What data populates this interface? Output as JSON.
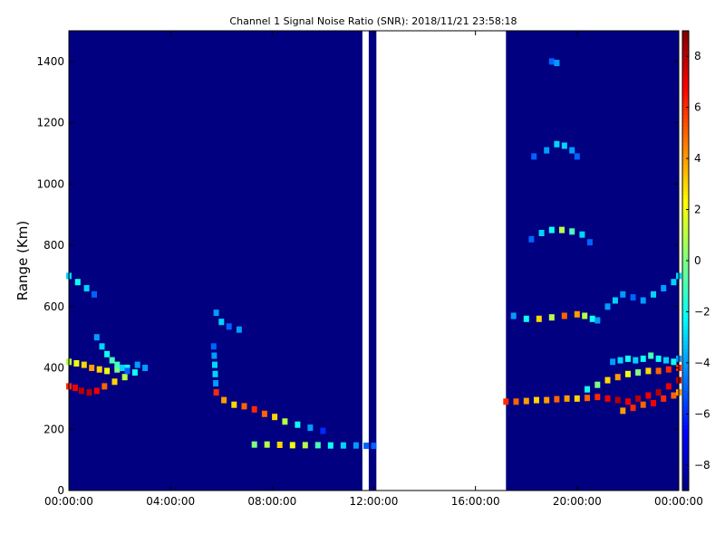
{
  "chart_data": {
    "type": "heatmap",
    "title": "Channel 1 Signal Noise Ratio (SNR): 2018/11/21 23:58:18",
    "xlabel": "",
    "ylabel": "Range (Km)",
    "x_unit": "hours",
    "xlim": [
      0,
      24
    ],
    "ylim": [
      0,
      1500
    ],
    "x_ticks": [
      {
        "value": 0,
        "label": "00:00:00"
      },
      {
        "value": 4,
        "label": "04:00:00"
      },
      {
        "value": 8,
        "label": "08:00:00"
      },
      {
        "value": 12,
        "label": "12:00:00"
      },
      {
        "value": 16,
        "label": "16:00:00"
      },
      {
        "value": 20,
        "label": "20:00:00"
      },
      {
        "value": 24,
        "label": "00:00:00"
      }
    ],
    "y_ticks": [
      {
        "value": 0,
        "label": "0"
      },
      {
        "value": 200,
        "label": "200"
      },
      {
        "value": 400,
        "label": "400"
      },
      {
        "value": 600,
        "label": "600"
      },
      {
        "value": 800,
        "label": "800"
      },
      {
        "value": 1000,
        "label": "1000"
      },
      {
        "value": 1200,
        "label": "1200"
      },
      {
        "value": 1400,
        "label": "1400"
      }
    ],
    "colorbar": {
      "colormap": "jet",
      "range": [
        -9,
        9
      ],
      "ticks": [
        {
          "value": 8,
          "label": "8"
        },
        {
          "value": 6,
          "label": "6"
        },
        {
          "value": 4,
          "label": "4"
        },
        {
          "value": 2,
          "label": "2"
        },
        {
          "value": 0,
          "label": "0"
        },
        {
          "value": -2,
          "label": "−2"
        },
        {
          "value": -4,
          "label": "−4"
        },
        {
          "value": -6,
          "label": "−6"
        },
        {
          "value": -8,
          "label": "−8"
        }
      ]
    },
    "background_value": -9,
    "data_coverage": [
      {
        "x_start": 0.0,
        "x_end": 11.55
      },
      {
        "x_start": 11.8,
        "x_end": 12.1
      },
      {
        "x_start": 17.2,
        "x_end": 24.0
      }
    ],
    "features": [
      {
        "x": [
          0.0,
          0.35,
          0.7,
          1.0
        ],
        "y": [
          700,
          680,
          660,
          640
        ],
        "snr": [
          -3,
          -2,
          -3,
          -5
        ]
      },
      {
        "x": [
          0.0,
          0.25,
          0.5,
          0.8,
          1.1,
          1.4,
          1.8,
          2.2,
          2.6,
          3.0
        ],
        "y": [
          340,
          335,
          325,
          320,
          325,
          340,
          355,
          370,
          385,
          400
        ],
        "snr": [
          6,
          7,
          8,
          8,
          7,
          5,
          3,
          1,
          -2,
          -4
        ]
      },
      {
        "x": [
          0.0,
          0.3,
          0.6,
          0.9,
          1.2,
          1.5,
          1.9,
          2.3,
          2.7
        ],
        "y": [
          420,
          415,
          410,
          400,
          395,
          390,
          395,
          400,
          410
        ],
        "snr": [
          1,
          2,
          3,
          4,
          3,
          2,
          0,
          -2,
          -4
        ]
      },
      {
        "x": [
          1.1,
          1.3,
          1.5,
          1.7,
          1.9,
          2.1,
          2.3
        ],
        "y": [
          500,
          470,
          445,
          425,
          410,
          400,
          390
        ],
        "snr": [
          -4,
          -3,
          -2,
          -1,
          -1,
          -3,
          -5
        ]
      },
      {
        "x": [
          5.7,
          5.72,
          5.74,
          5.76,
          5.78
        ],
        "y": [
          470,
          440,
          410,
          380,
          350
        ],
        "snr": [
          -5,
          -4,
          -3,
          -3,
          -4
        ]
      },
      {
        "x": [
          5.8,
          6.0,
          6.3,
          6.7
        ],
        "y": [
          580,
          550,
          535,
          525
        ],
        "snr": [
          -4,
          -3,
          -5,
          -4
        ]
      },
      {
        "x": [
          5.8,
          6.1,
          6.5,
          6.9,
          7.3,
          7.7,
          8.1,
          8.5,
          9.0,
          9.5,
          10.0
        ],
        "y": [
          320,
          295,
          280,
          275,
          265,
          250,
          240,
          225,
          215,
          205,
          195
        ],
        "snr": [
          6,
          4,
          3,
          5,
          6,
          5,
          3,
          1,
          -2,
          -4,
          -6
        ]
      },
      {
        "x": [
          7.3,
          7.8,
          8.3,
          8.8,
          9.3,
          9.8,
          10.3,
          10.8,
          11.3,
          11.7,
          12.0
        ],
        "y": [
          150,
          150,
          149,
          148,
          148,
          148,
          147,
          147,
          147,
          146,
          146
        ],
        "snr": [
          0,
          1,
          3,
          2,
          1,
          -1,
          -2,
          -3,
          -4,
          -5,
          -5
        ]
      },
      {
        "x": [
          17.2,
          17.6,
          18.0,
          18.4,
          18.8,
          19.2,
          19.6,
          20.0,
          20.4,
          20.8,
          21.2,
          21.6,
          22.0,
          22.4,
          22.8,
          23.2,
          23.6,
          24.0
        ],
        "y": [
          290,
          290,
          292,
          295,
          295,
          298,
          300,
          300,
          302,
          305,
          300,
          295,
          290,
          300,
          310,
          320,
          340,
          360
        ],
        "snr": [
          6,
          5,
          4,
          3,
          4,
          5,
          4,
          3,
          5,
          6,
          7,
          8,
          7,
          8,
          7,
          8,
          7,
          8
        ]
      },
      {
        "x": [
          20.4,
          20.8,
          21.2,
          21.6,
          22.0,
          22.4,
          22.8,
          23.2,
          23.6,
          24.0
        ],
        "y": [
          330,
          345,
          360,
          370,
          380,
          385,
          390,
          390,
          395,
          400
        ],
        "snr": [
          -2,
          0,
          3,
          4,
          2,
          0,
          3,
          5,
          6,
          6
        ]
      },
      {
        "x": [
          21.4,
          21.7,
          22.0,
          22.3,
          22.6,
          22.9,
          23.2,
          23.5,
          23.8,
          24.0
        ],
        "y": [
          420,
          425,
          430,
          425,
          430,
          440,
          430,
          425,
          420,
          430
        ],
        "snr": [
          -4,
          -3,
          -2,
          -3,
          -2,
          -1,
          -2,
          -3,
          -2,
          -4
        ]
      },
      {
        "x": [
          21.8,
          22.2,
          22.6,
          23.0,
          23.4,
          23.8,
          24.0
        ],
        "y": [
          260,
          270,
          280,
          285,
          300,
          310,
          320
        ],
        "snr": [
          4,
          6,
          5,
          7,
          6,
          5,
          4
        ]
      },
      {
        "x": [
          17.5,
          18.0,
          18.5,
          19.0,
          19.5,
          20.0,
          20.3,
          20.6,
          20.8
        ],
        "y": [
          570,
          560,
          560,
          565,
          570,
          575,
          570,
          560,
          555
        ],
        "snr": [
          -4,
          -2,
          3,
          1,
          5,
          4,
          1,
          -2,
          -4
        ]
      },
      {
        "x": [
          21.2,
          21.5,
          21.8,
          22.2,
          22.6,
          23.0,
          23.4,
          23.8,
          24.0
        ],
        "y": [
          600,
          620,
          640,
          630,
          620,
          640,
          660,
          680,
          700
        ],
        "snr": [
          -4,
          -3,
          -4,
          -5,
          -4,
          -3,
          -4,
          -3,
          -3
        ]
      },
      {
        "x": [
          18.2,
          18.6,
          19.0,
          19.4,
          19.8,
          20.2,
          20.5
        ],
        "y": [
          820,
          840,
          850,
          850,
          845,
          835,
          810
        ],
        "snr": [
          -5,
          -3,
          -2,
          1,
          -1,
          -3,
          -5
        ]
      },
      {
        "x": [
          18.3,
          18.8,
          19.2,
          19.5,
          19.8,
          20.0
        ],
        "y": [
          1090,
          1110,
          1130,
          1125,
          1110,
          1090
        ],
        "snr": [
          -5,
          -4,
          -3,
          -3,
          -4,
          -5
        ]
      },
      {
        "x": [
          19.0,
          19.2
        ],
        "y": [
          1400,
          1395
        ],
        "snr": [
          -5,
          -4
        ]
      }
    ],
    "grid": false,
    "legend": "colorbar-right"
  }
}
